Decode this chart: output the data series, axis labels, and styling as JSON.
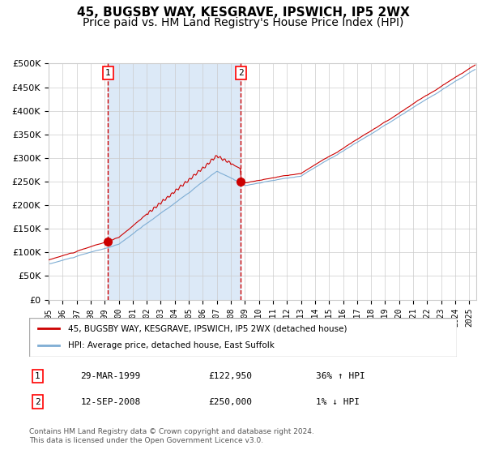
{
  "title": "45, BUGSBY WAY, KESGRAVE, IPSWICH, IP5 2WX",
  "subtitle": "Price paid vs. HM Land Registry's House Price Index (HPI)",
  "xlabel": "",
  "ylabel": "",
  "ylim": [
    0,
    500000
  ],
  "yticks": [
    0,
    50000,
    100000,
    150000,
    200000,
    250000,
    300000,
    350000,
    400000,
    450000,
    500000
  ],
  "xlim_start": 1995.0,
  "xlim_end": 2025.5,
  "background_color": "#ffffff",
  "plot_bg_color": "#ffffff",
  "shaded_region_color": "#dce9f7",
  "grid_color": "#cccccc",
  "red_line_color": "#cc0000",
  "blue_line_color": "#7eadd4",
  "dashed_line_color": "#cc0000",
  "purchase1_date_num": 1999.24,
  "purchase1_price": 122950,
  "purchase1_label": "1",
  "purchase2_date_num": 2008.71,
  "purchase2_price": 250000,
  "purchase2_label": "2",
  "legend_line1": "45, BUGSBY WAY, KESGRAVE, IPSWICH, IP5 2WX (detached house)",
  "legend_line2": "HPI: Average price, detached house, East Suffolk",
  "table_row1": [
    "1",
    "29-MAR-1999",
    "£122,950",
    "36% ↑ HPI"
  ],
  "table_row2": [
    "2",
    "12-SEP-2008",
    "£250,000",
    "1% ↓ HPI"
  ],
  "footnote": "Contains HM Land Registry data © Crown copyright and database right 2024.\nThis data is licensed under the Open Government Licence v3.0.",
  "title_fontsize": 11,
  "subtitle_fontsize": 10
}
